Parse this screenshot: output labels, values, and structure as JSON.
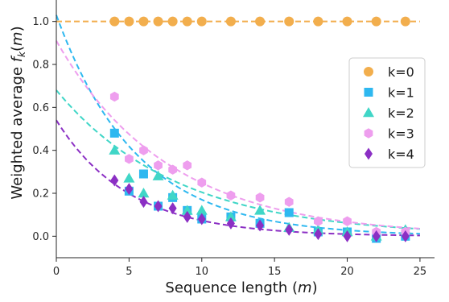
{
  "chart_data": {
    "type": "scatter",
    "xlabel": "Sequence length (m)",
    "ylabel": "Weighted average f_k(m)",
    "xlim": [
      0,
      26
    ],
    "ylim": [
      -0.1,
      1.1
    ],
    "x_ticks": [
      0,
      5,
      10,
      15,
      20,
      25
    ],
    "y_ticks": [
      0.0,
      0.2,
      0.4,
      0.6,
      0.8,
      1.0
    ],
    "grid": false,
    "legend_position": "center-right",
    "series": [
      {
        "name": "k=0",
        "marker": "circle",
        "color": "#F2AE4D",
        "x": [
          4,
          5,
          6,
          7,
          8,
          9,
          10,
          12,
          14,
          16,
          18,
          20,
          22,
          24
        ],
        "y": [
          1.0,
          1.0,
          1.0,
          1.0,
          1.0,
          1.0,
          1.0,
          1.0,
          1.0,
          1.0,
          1.0,
          1.0,
          1.0,
          1.0
        ],
        "fit": {
          "a": 1.0,
          "b": 0.0,
          "x_range": [
            0,
            25
          ]
        }
      },
      {
        "name": "k=1",
        "marker": "square",
        "color": "#2EB8F0",
        "x": [
          4,
          5,
          6,
          7,
          8,
          9,
          10,
          12,
          14,
          16,
          18,
          20,
          22,
          24
        ],
        "y": [
          0.48,
          0.21,
          0.29,
          0.14,
          0.18,
          0.12,
          0.08,
          0.09,
          0.06,
          0.11,
          0.02,
          0.02,
          -0.01,
          0.0
        ],
        "fit": {
          "a": 1.03,
          "b": 0.18,
          "x_range": [
            0,
            25
          ]
        }
      },
      {
        "name": "k=2",
        "marker": "triangle",
        "color": "#40D6C7",
        "x": [
          4,
          5,
          6,
          7,
          8,
          9,
          10,
          12,
          14,
          16,
          18,
          20,
          22,
          24
        ],
        "y": [
          0.4,
          0.27,
          0.2,
          0.28,
          0.19,
          0.12,
          0.12,
          0.09,
          0.12,
          0.04,
          0.03,
          0.02,
          0.0,
          0.03
        ],
        "fit": {
          "a": 0.68,
          "b": 0.12,
          "x_range": [
            0,
            25
          ]
        }
      },
      {
        "name": "k=3",
        "marker": "hexagon",
        "color": "#EE9EEE",
        "x": [
          4,
          5,
          6,
          7,
          8,
          9,
          10,
          12,
          14,
          16,
          18,
          20,
          22,
          24
        ],
        "y": [
          0.65,
          0.36,
          0.4,
          0.33,
          0.31,
          0.33,
          0.25,
          0.19,
          0.18,
          0.16,
          0.07,
          0.07,
          0.02,
          0.02
        ],
        "fit": {
          "a": 0.91,
          "b": 0.13,
          "x_range": [
            0,
            25
          ]
        }
      },
      {
        "name": "k=4",
        "marker": "diamond",
        "color": "#8B2FC4",
        "x": [
          4,
          5,
          6,
          7,
          8,
          9,
          10,
          12,
          14,
          16,
          18,
          20,
          22,
          24
        ],
        "y": [
          0.26,
          0.22,
          0.16,
          0.14,
          0.13,
          0.09,
          0.08,
          0.06,
          0.05,
          0.03,
          0.01,
          0.0,
          0.0,
          0.0
        ],
        "fit": {
          "a": 0.54,
          "b": 0.2,
          "x_range": [
            0,
            25
          ]
        }
      }
    ]
  }
}
